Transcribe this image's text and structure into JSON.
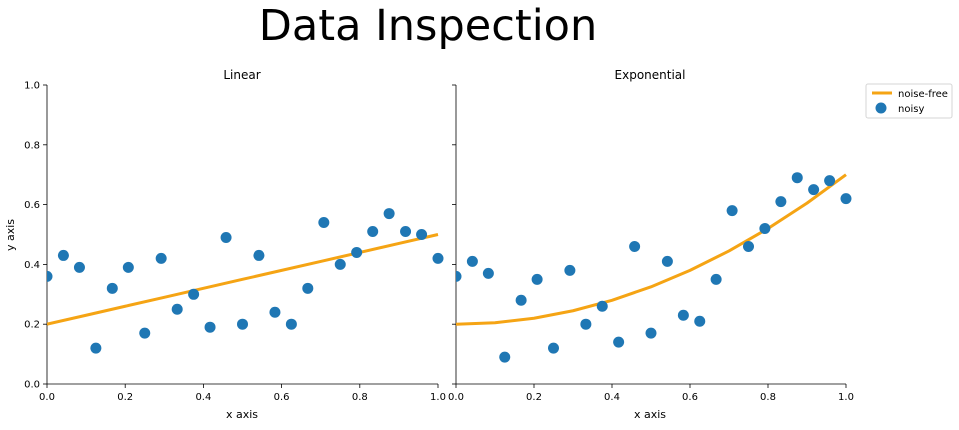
{
  "title": "Data Inspection",
  "colors": {
    "noise_free": "#f5a414",
    "noisy": "#1f77b4"
  },
  "legend": {
    "items": [
      "noise-free",
      "noisy"
    ],
    "placement": "upper-right-outside"
  },
  "chart_data": [
    {
      "type": "scatter",
      "title": "Linear",
      "xlabel": "x axis",
      "ylabel": "y axis",
      "xlim": [
        0,
        1
      ],
      "ylim": [
        0,
        1
      ],
      "xticks": [
        "0.0",
        "0.2",
        "0.4",
        "0.6",
        "0.8",
        "1.0"
      ],
      "yticks": [
        "0.0",
        "0.2",
        "0.4",
        "0.6",
        "0.8",
        "1.0"
      ],
      "series": [
        {
          "name": "noise-free",
          "kind": "line",
          "x": [
            0,
            0.1,
            0.2,
            0.3,
            0.4,
            0.5,
            0.6,
            0.7,
            0.8,
            0.9,
            1.0
          ],
          "y": [
            0.2,
            0.23,
            0.26,
            0.29,
            0.32,
            0.35,
            0.38,
            0.41,
            0.44,
            0.47,
            0.5
          ]
        },
        {
          "name": "noisy",
          "kind": "scatter",
          "x": [
            0,
            0.042,
            0.083,
            0.125,
            0.167,
            0.208,
            0.25,
            0.292,
            0.333,
            0.375,
            0.417,
            0.458,
            0.5,
            0.542,
            0.583,
            0.625,
            0.667,
            0.708,
            0.75,
            0.792,
            0.833,
            0.875,
            0.917,
            0.958,
            1.0
          ],
          "y": [
            0.36,
            0.43,
            0.39,
            0.12,
            0.32,
            0.39,
            0.17,
            0.42,
            0.25,
            0.3,
            0.19,
            0.49,
            0.2,
            0.43,
            0.24,
            0.2,
            0.32,
            0.54,
            0.4,
            0.44,
            0.51,
            0.57,
            0.51,
            0.5,
            0.42
          ]
        }
      ]
    },
    {
      "type": "scatter",
      "title": "Exponential",
      "xlabel": "x axis",
      "ylabel": "",
      "xlim": [
        0,
        1
      ],
      "ylim": [
        0,
        1
      ],
      "xticks": [
        "0.0",
        "0.2",
        "0.4",
        "0.6",
        "0.8",
        "1.0"
      ],
      "series": [
        {
          "name": "noise-free",
          "kind": "line",
          "x": [
            0,
            0.1,
            0.2,
            0.3,
            0.4,
            0.5,
            0.6,
            0.7,
            0.8,
            0.9,
            1.0
          ],
          "y": [
            0.2,
            0.205,
            0.22,
            0.245,
            0.28,
            0.325,
            0.38,
            0.445,
            0.52,
            0.605,
            0.7
          ]
        },
        {
          "name": "noisy",
          "kind": "scatter",
          "x": [
            0,
            0.042,
            0.083,
            0.125,
            0.167,
            0.208,
            0.25,
            0.292,
            0.333,
            0.375,
            0.417,
            0.458,
            0.5,
            0.542,
            0.583,
            0.625,
            0.667,
            0.708,
            0.75,
            0.792,
            0.833,
            0.875,
            0.917,
            0.958,
            1.0
          ],
          "y": [
            0.36,
            0.41,
            0.37,
            0.09,
            0.28,
            0.35,
            0.12,
            0.38,
            0.2,
            0.26,
            0.14,
            0.46,
            0.17,
            0.41,
            0.23,
            0.21,
            0.35,
            0.58,
            0.46,
            0.52,
            0.61,
            0.69,
            0.65,
            0.68,
            0.62
          ]
        }
      ]
    }
  ]
}
